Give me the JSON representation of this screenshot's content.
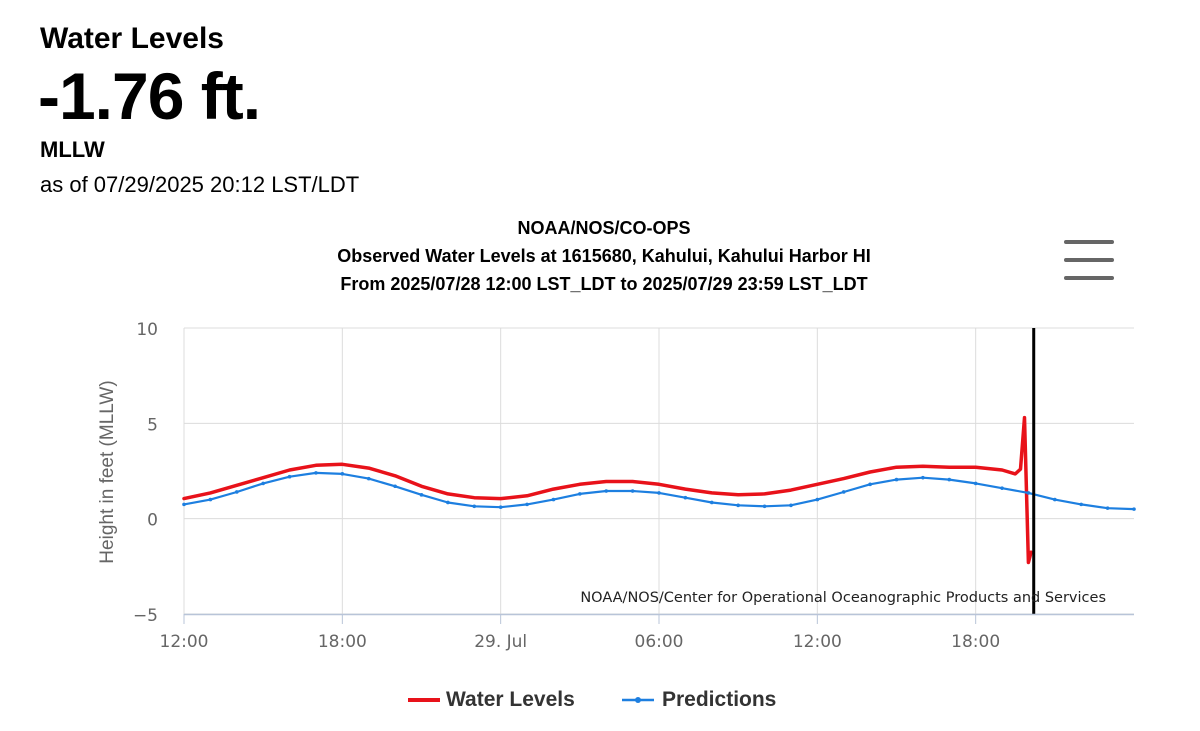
{
  "header": {
    "title": "Water Levels",
    "value": "-1.76 ft.",
    "datum": "MLLW",
    "as_of": "as of 07/29/2025 20:12 LST/LDT"
  },
  "colors": {
    "water_levels": "#e8121a",
    "predictions": "#1d7fe0",
    "current_marker": "#000000",
    "grid": "#dcdcdc"
  },
  "chart_data": {
    "type": "line",
    "title_lines": [
      "NOAA/NOS/CO-OPS",
      "Observed Water Levels at 1615680, Kahului, Kahului Harbor HI",
      "From 2025/07/28 12:00 LST_LDT to 2025/07/29 23:59 LST_LDT"
    ],
    "ylabel": "Height in feet (MLLW)",
    "xlabel": "",
    "ylim": [
      -5,
      10
    ],
    "yticks": [
      -5,
      0,
      5,
      10
    ],
    "ytick_labels": [
      "−5",
      "0",
      "5",
      "10"
    ],
    "xlim_hours": [
      0,
      36
    ],
    "xticks": [
      {
        "hour": 0,
        "label": "12:00"
      },
      {
        "hour": 6,
        "label": "18:00"
      },
      {
        "hour": 12,
        "label": "29. Jul"
      },
      {
        "hour": 18,
        "label": "06:00"
      },
      {
        "hour": 24,
        "label": "12:00"
      },
      {
        "hour": 30,
        "label": "18:00"
      }
    ],
    "x_unit": "hours since 2025/07/28 12:00",
    "current_time_hour": 32.2,
    "credit": "NOAA/NOS/Center for Operational Oceanographic Products and Services",
    "grid": true,
    "series": [
      {
        "name": "Water Levels",
        "x": [
          0,
          1,
          2,
          3,
          4,
          5,
          6,
          7,
          8,
          9,
          10,
          11,
          12,
          13,
          14,
          15,
          16,
          17,
          18,
          19,
          20,
          21,
          22,
          23,
          24,
          25,
          26,
          27,
          28,
          29,
          30,
          31,
          31.5,
          31.7,
          31.85,
          32.0,
          32.1
        ],
        "values": [
          1.05,
          1.35,
          1.75,
          2.15,
          2.55,
          2.8,
          2.85,
          2.65,
          2.25,
          1.7,
          1.3,
          1.1,
          1.05,
          1.2,
          1.55,
          1.8,
          1.95,
          1.95,
          1.8,
          1.55,
          1.35,
          1.25,
          1.3,
          1.5,
          1.8,
          2.1,
          2.45,
          2.7,
          2.75,
          2.7,
          2.7,
          2.55,
          2.35,
          2.6,
          5.3,
          -2.3,
          -1.76
        ]
      },
      {
        "name": "Predictions",
        "x": [
          0,
          1,
          2,
          3,
          4,
          5,
          6,
          7,
          8,
          9,
          10,
          11,
          12,
          13,
          14,
          15,
          16,
          17,
          18,
          19,
          20,
          21,
          22,
          23,
          24,
          25,
          26,
          27,
          28,
          29,
          30,
          31,
          32,
          33,
          34,
          35,
          36
        ],
        "values": [
          0.75,
          1.0,
          1.4,
          1.85,
          2.2,
          2.4,
          2.35,
          2.1,
          1.7,
          1.25,
          0.85,
          0.65,
          0.6,
          0.75,
          1.0,
          1.3,
          1.45,
          1.45,
          1.35,
          1.1,
          0.85,
          0.7,
          0.65,
          0.7,
          1.0,
          1.4,
          1.8,
          2.05,
          2.15,
          2.05,
          1.85,
          1.6,
          1.35,
          1.0,
          0.75,
          0.55,
          0.5
        ]
      }
    ]
  }
}
